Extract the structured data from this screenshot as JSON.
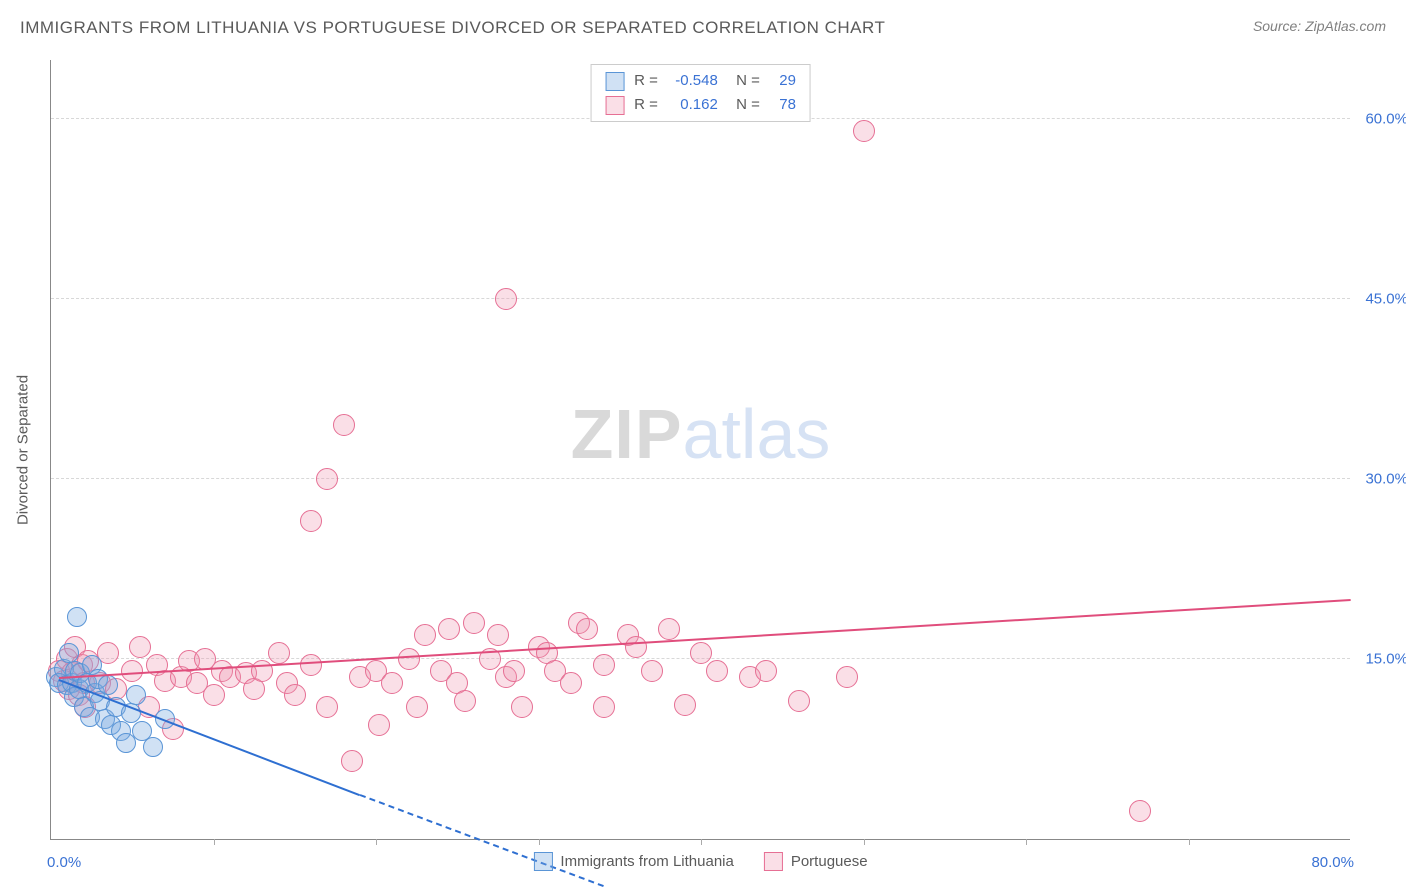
{
  "header": {
    "title": "IMMIGRANTS FROM LITHUANIA VS PORTUGUESE DIVORCED OR SEPARATED CORRELATION CHART",
    "source": "Source: ZipAtlas.com"
  },
  "watermark": {
    "zip": "ZIP",
    "atlas": "atlas"
  },
  "axes": {
    "y_title": "Divorced or Separated",
    "x_min_label": "0.0%",
    "x_max_label": "80.0%",
    "xlim": [
      0,
      80
    ],
    "ylim": [
      0,
      65
    ],
    "y_ticks": [
      {
        "v": 15,
        "label": "15.0%"
      },
      {
        "v": 30,
        "label": "30.0%"
      },
      {
        "v": 45,
        "label": "45.0%"
      },
      {
        "v": 60,
        "label": "60.0%"
      }
    ],
    "x_minor_ticks": [
      10,
      20,
      30,
      40,
      50,
      60,
      70
    ]
  },
  "series": {
    "lithuania": {
      "label": "Immigrants from Lithuania",
      "fill": "rgba(120,168,224,0.35)",
      "stroke": "#5a95d6",
      "line_color": "#2e6fd1",
      "R": "-0.548",
      "N": "29",
      "marker_r": 10,
      "reg": {
        "x1": 0.5,
        "y1": 13.2,
        "x2": 19,
        "y2": 3.6,
        "solid_to_x": 19,
        "dash_to_x": 34,
        "dash_to_y": -4
      },
      "points": [
        [
          0.3,
          13.5
        ],
        [
          0.5,
          13.0
        ],
        [
          0.8,
          14.2
        ],
        [
          1.0,
          12.8
        ],
        [
          1.1,
          15.5
        ],
        [
          1.3,
          13.0
        ],
        [
          1.4,
          11.8
        ],
        [
          1.5,
          14.0
        ],
        [
          1.7,
          12.5
        ],
        [
          1.8,
          13.8
        ],
        [
          2.0,
          11.0
        ],
        [
          2.2,
          13.0
        ],
        [
          2.4,
          10.2
        ],
        [
          2.5,
          14.5
        ],
        [
          2.7,
          12.2
        ],
        [
          2.9,
          13.3
        ],
        [
          3.0,
          11.5
        ],
        [
          3.3,
          10.0
        ],
        [
          3.5,
          12.8
        ],
        [
          3.7,
          9.5
        ],
        [
          4.0,
          11.0
        ],
        [
          4.3,
          9.0
        ],
        [
          4.6,
          8.0
        ],
        [
          4.9,
          10.5
        ],
        [
          5.2,
          12.0
        ],
        [
          5.6,
          9.0
        ],
        [
          6.3,
          7.7
        ],
        [
          7.0,
          10.0
        ],
        [
          1.6,
          18.5
        ]
      ]
    },
    "portuguese": {
      "label": "Portuguese",
      "fill": "rgba(240,150,175,0.30)",
      "stroke": "#e66f94",
      "line_color": "#e04d7c",
      "R": "0.162",
      "N": "78",
      "marker_r": 11,
      "reg": {
        "x1": 0.5,
        "y1": 13.3,
        "x2": 80,
        "y2": 19.8
      },
      "points": [
        [
          0.5,
          14.0
        ],
        [
          0.8,
          13.2
        ],
        [
          1.0,
          15.0
        ],
        [
          1.1,
          12.5
        ],
        [
          1.3,
          13.8
        ],
        [
          1.5,
          16.0
        ],
        [
          1.7,
          12.0
        ],
        [
          1.9,
          14.5
        ],
        [
          2.0,
          13.0
        ],
        [
          2.1,
          11.0
        ],
        [
          2.3,
          14.8
        ],
        [
          3.0,
          13.0
        ],
        [
          3.5,
          15.5
        ],
        [
          4.0,
          12.5
        ],
        [
          5.0,
          14.0
        ],
        [
          5.5,
          16.0
        ],
        [
          6.0,
          11.0
        ],
        [
          6.5,
          14.5
        ],
        [
          7.0,
          13.2
        ],
        [
          7.5,
          9.2
        ],
        [
          8.0,
          13.5
        ],
        [
          8.5,
          14.8
        ],
        [
          9.0,
          13.0
        ],
        [
          9.5,
          15.0
        ],
        [
          10.0,
          12.0
        ],
        [
          10.5,
          14.0
        ],
        [
          11.0,
          13.5
        ],
        [
          12.0,
          13.8
        ],
        [
          12.5,
          12.5
        ],
        [
          13.0,
          14.0
        ],
        [
          14.0,
          15.5
        ],
        [
          14.5,
          13.0
        ],
        [
          15.0,
          12.0
        ],
        [
          16.0,
          26.5
        ],
        [
          16.0,
          14.5
        ],
        [
          17.0,
          30.0
        ],
        [
          17.0,
          11.0
        ],
        [
          18.0,
          34.5
        ],
        [
          18.5,
          6.5
        ],
        [
          19.0,
          13.5
        ],
        [
          20.0,
          14.0
        ],
        [
          20.2,
          9.5
        ],
        [
          21.0,
          13.0
        ],
        [
          22.0,
          15.0
        ],
        [
          22.5,
          11.0
        ],
        [
          23.0,
          17.0
        ],
        [
          24.0,
          14.0
        ],
        [
          24.5,
          17.5
        ],
        [
          25.0,
          13.0
        ],
        [
          25.5,
          11.5
        ],
        [
          26.0,
          18.0
        ],
        [
          27.0,
          15.0
        ],
        [
          27.5,
          17.0
        ],
        [
          28.0,
          45.0
        ],
        [
          28.0,
          13.5
        ],
        [
          28.5,
          14.0
        ],
        [
          29.0,
          11.0
        ],
        [
          30.0,
          16.0
        ],
        [
          30.5,
          15.5
        ],
        [
          31.0,
          14.0
        ],
        [
          32.0,
          13.0
        ],
        [
          32.5,
          18.0
        ],
        [
          33.0,
          17.5
        ],
        [
          34.0,
          11.0
        ],
        [
          34.0,
          14.5
        ],
        [
          35.5,
          17.0
        ],
        [
          36.0,
          16.0
        ],
        [
          37.0,
          14.0
        ],
        [
          38.0,
          17.5
        ],
        [
          39.0,
          11.2
        ],
        [
          40.0,
          15.5
        ],
        [
          41.0,
          14.0
        ],
        [
          43.0,
          13.5
        ],
        [
          44.0,
          14.0
        ],
        [
          46.0,
          11.5
        ],
        [
          49.0,
          13.5
        ],
        [
          50.0,
          59.0
        ],
        [
          67.0,
          2.3
        ]
      ]
    }
  },
  "colors": {
    "title": "#5a5a5a",
    "axis_label": "#3a72d4",
    "grid": "#d8d8d8",
    "border": "#888888"
  }
}
